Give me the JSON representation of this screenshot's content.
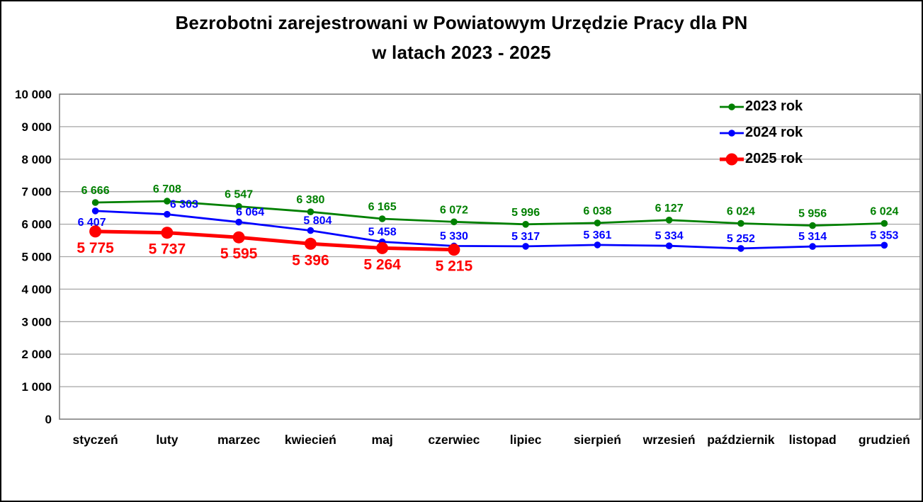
{
  "frame": {
    "background": "#FFFFFF",
    "border_color": "#000000"
  },
  "chart_data": {
    "type": "line",
    "title": "Bezrobotni zarejestrowani w Powiatowym Urzędzie Pracy dla PN",
    "subtitle": "w latach 2023 - 2025",
    "categories": [
      "styczeń",
      "luty",
      "marzec",
      "kwiecień",
      "maj",
      "czerwiec",
      "lipiec",
      "sierpień",
      "wrzesień",
      "październik",
      "listopad",
      "grudzień"
    ],
    "series": [
      {
        "name": "2023 rok",
        "color": "#008000",
        "values": [
          6666,
          6708,
          6547,
          6380,
          6165,
          6072,
          5996,
          6038,
          6127,
          6024,
          5956,
          6024
        ],
        "line_width": 2.8,
        "marker_radius": 4.8,
        "label_font_size": 16,
        "label_dy": -12,
        "label_offsets": {}
      },
      {
        "name": "2024 rok",
        "color": "#0000FF",
        "values": [
          6407,
          6303,
          6064,
          5804,
          5458,
          5330,
          5317,
          5361,
          5334,
          5252,
          5314,
          5353
        ],
        "line_width": 2.8,
        "marker_radius": 4.8,
        "label_font_size": 16,
        "label_dy": -9,
        "label_offsets": {
          "0": {
            "dx": -5,
            "dy": 21
          },
          "1": {
            "dx": 24
          },
          "2": {
            "dx": 16
          },
          "3": {
            "dx": 10
          }
        }
      },
      {
        "name": "2025 rok",
        "color": "#FF0000",
        "values": [
          5775,
          5737,
          5595,
          5396,
          5264,
          5215
        ],
        "line_width": 5,
        "marker_radius": 8.5,
        "label_font_size": 21,
        "label_dy": 30,
        "label_offsets": {}
      }
    ],
    "ylim": [
      0,
      10000
    ],
    "ytick_step": 1000,
    "grid": "horizontal-only",
    "legend_position": "top-right-inside",
    "number_format": "space-thousands",
    "axis_text_color": "#000000",
    "gridline_color": "#A6A6A6",
    "plot_border_color": "#808080"
  }
}
